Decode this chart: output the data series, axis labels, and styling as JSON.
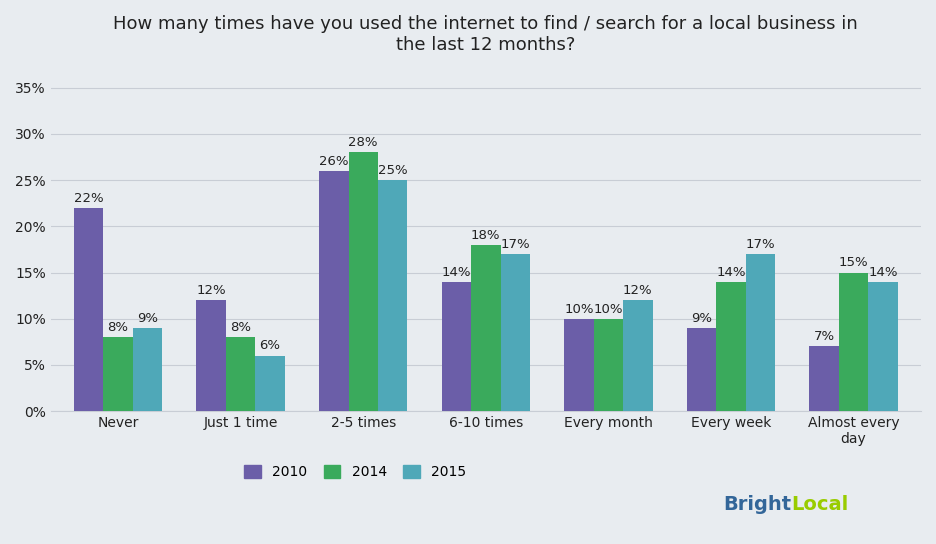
{
  "title": "How many times have you used the internet to find / search for a local business in\nthe last 12 months?",
  "categories": [
    "Never",
    "Just 1 time",
    "2-5 times",
    "6-10 times",
    "Every month",
    "Every week",
    "Almost every\nday"
  ],
  "series": {
    "2010": [
      22,
      12,
      26,
      14,
      10,
      9,
      7
    ],
    "2014": [
      8,
      8,
      28,
      18,
      10,
      14,
      15
    ],
    "2015": [
      9,
      6,
      25,
      17,
      12,
      17,
      14
    ]
  },
  "colors": {
    "2010": "#6b5ea8",
    "2014": "#3aaa5c",
    "2015": "#4fa8b8"
  },
  "ylim": [
    0,
    37
  ],
  "yticks": [
    0,
    5,
    10,
    15,
    20,
    25,
    30,
    35
  ],
  "ytick_labels": [
    "0%",
    "5%",
    "10%",
    "15%",
    "20%",
    "25%",
    "30%",
    "35%"
  ],
  "legend_labels": [
    "2010",
    "2014",
    "2015"
  ],
  "brightlocal_color_bright": "#99cc00",
  "brightlocal_color_dark": "#336699",
  "background_color": "#e8ecf0",
  "plot_area_color": "#e8ecf0",
  "bar_width": 0.24,
  "title_fontsize": 13,
  "tick_fontsize": 10,
  "annotation_fontsize": 9.5
}
